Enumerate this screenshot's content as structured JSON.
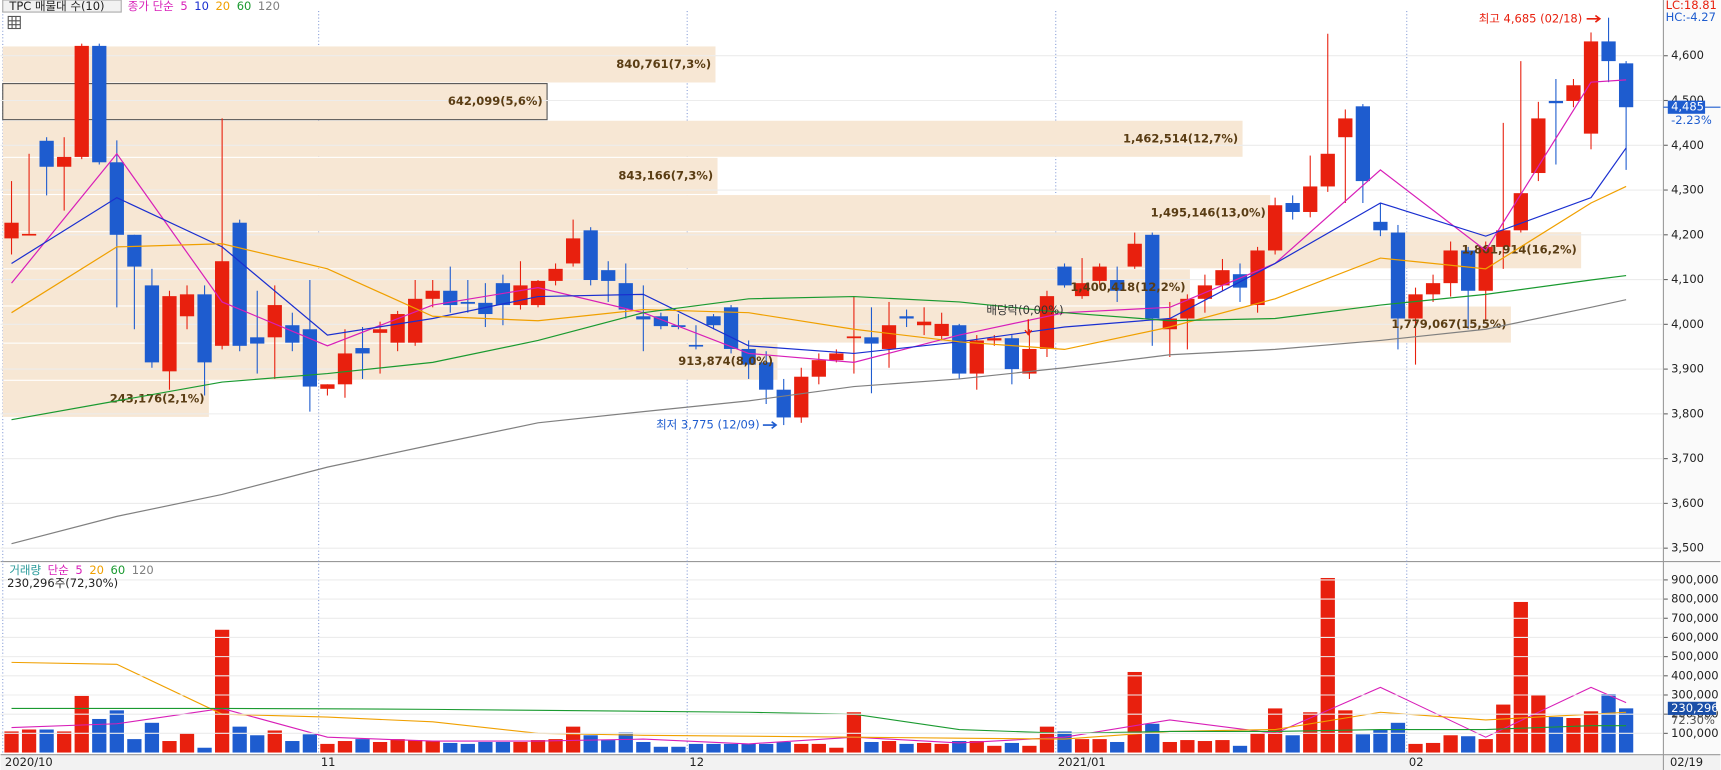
{
  "chart_data": [
    {
      "type": "candlestick",
      "legend_title": "TPC 매물대 수(10)",
      "legend_prefix": {
        "text": "종가 단순",
        "color": "#d81fb8"
      },
      "lc_label": "LC:18.81",
      "hc_label": "HC:-4.27",
      "up_color": "#e8200e",
      "down_color": "#1e5ccf",
      "open": [
        4192,
        4202,
        4410,
        4352,
        4374,
        4622,
        4362,
        4200,
        4087,
        3895,
        4018,
        4067,
        3952,
        4227,
        3971,
        3971,
        3998,
        3989,
        3856,
        3866,
        3947,
        3981,
        3959,
        3959,
        4057,
        4075,
        4050,
        4048,
        4092,
        4043,
        4043,
        4097,
        4136,
        4210,
        4121,
        4092,
        4018,
        4018,
        3998,
        3954,
        4018,
        4038,
        3945,
        3915,
        3854,
        3792,
        3883,
        3920,
        3969,
        3971,
        3945,
        4018,
        3998,
        3974,
        3998,
        3890,
        3964,
        3969,
        3890,
        3945,
        4129,
        4063,
        4097,
        4099,
        4129,
        4200,
        3989,
        4013,
        4057,
        4087,
        4112,
        4043,
        4165,
        4271,
        4251,
        4308,
        4418,
        4487,
        4229,
        4205,
        4013,
        4067,
        4092,
        4165,
        4075,
        4173,
        4210,
        4338,
        4499,
        4499,
        4426,
        4632,
        4583
      ],
      "high": [
        4320,
        4381,
        4418,
        4418,
        4627,
        4627,
        4411,
        4200,
        4124,
        4075,
        4087,
        4087,
        4460,
        4234,
        4075,
        4087,
        4026,
        4099,
        3866,
        3989,
        3994,
        4006,
        4030,
        4099,
        4099,
        4129,
        4099,
        4092,
        4111,
        4141,
        4099,
        4136,
        4234,
        4217,
        4141,
        4136,
        4087,
        4026,
        4023,
        3998,
        4023,
        4043,
        3964,
        3940,
        3878,
        3903,
        3935,
        3944,
        4062,
        4038,
        4050,
        4033,
        4038,
        4026,
        4001,
        3976,
        3976,
        3976,
        3989,
        4075,
        4136,
        4148,
        4136,
        4129,
        4205,
        4205,
        4050,
        4067,
        4111,
        4146,
        4136,
        4173,
        4283,
        4288,
        4377,
        4649,
        4480,
        4492,
        4271,
        4222,
        4082,
        4111,
        4185,
        4173,
        4185,
        4450,
        4588,
        4497,
        4548,
        4548,
        4652,
        4685,
        4588
      ],
      "low": [
        4156,
        4202,
        4288,
        4254,
        4369,
        4357,
        4038,
        3989,
        3903,
        3854,
        3989,
        3841,
        3944,
        3940,
        3890,
        3878,
        3940,
        3805,
        3841,
        3836,
        3878,
        3890,
        3940,
        3952,
        4038,
        4026,
        4026,
        3994,
        3998,
        4033,
        4038,
        4087,
        4129,
        4087,
        4050,
        4013,
        3940,
        3989,
        3989,
        3944,
        3989,
        3935,
        3878,
        3822,
        3775,
        3780,
        3866,
        3915,
        3890,
        3846,
        3903,
        3994,
        3976,
        3964,
        3878,
        3854,
        3952,
        3866,
        3878,
        3927,
        4082,
        4057,
        4087,
        4050,
        4124,
        3952,
        3927,
        3944,
        4026,
        4075,
        4050,
        4026,
        4156,
        4234,
        4239,
        4296,
        4271,
        4271,
        4197,
        3944,
        3910,
        4050,
        4062,
        3989,
        4008,
        4124,
        4205,
        4320,
        4357,
        4485,
        4391,
        4541,
        4345
      ],
      "close": [
        4227,
        4202,
        4352,
        4374,
        4622,
        4362,
        4200,
        4129,
        3915,
        4063,
        4067,
        3915,
        4141,
        3952,
        3957,
        4043,
        3959,
        3861,
        3866,
        3935,
        3935,
        3989,
        4023,
        4057,
        4075,
        4043,
        4046,
        4023,
        4043,
        4087,
        4097,
        4124,
        4192,
        4099,
        4097,
        4033,
        4011,
        3996,
        3994,
        3952,
        3998,
        3945,
        3910,
        3854,
        3792,
        3883,
        3920,
        3935,
        3973,
        3957,
        3998,
        4013,
        4006,
        4001,
        3890,
        3964,
        3969,
        3900,
        3945,
        4063,
        4087,
        4092,
        4129,
        4075,
        4180,
        4013,
        4013,
        4057,
        4087,
        4121,
        4082,
        4165,
        4266,
        4251,
        4308,
        4381,
        4460,
        4320,
        4210,
        4013,
        4067,
        4092,
        4165,
        4075,
        4173,
        4210,
        4293,
        4460,
        4494,
        4534,
        4632,
        4588,
        4485
      ],
      "ylim": [
        3470,
        4700
      ],
      "yticks": [
        {
          "value": 3500,
          "label": "3,500"
        },
        {
          "value": 3600,
          "label": "3,600"
        },
        {
          "value": 3700,
          "label": "3,700"
        },
        {
          "value": 3800,
          "label": "3,800"
        },
        {
          "value": 3900,
          "label": "3,900"
        },
        {
          "value": 4000,
          "label": "4,000"
        },
        {
          "value": 4100,
          "label": "4,100"
        },
        {
          "value": 4200,
          "label": "4,200"
        },
        {
          "value": 4300,
          "label": "4,300"
        },
        {
          "value": 4400,
          "label": "4,400"
        },
        {
          "value": 4500,
          "label": "4,500"
        },
        {
          "value": 4600,
          "label": "4,600"
        }
      ],
      "grid": true,
      "ma": [
        {
          "name": "5",
          "color": "#d81fb8",
          "x": [
            0,
            6,
            12,
            18,
            24,
            30,
            36,
            42,
            48,
            54,
            60,
            66,
            72,
            78,
            84,
            90,
            92
          ],
          "values": [
            4092,
            4381,
            4050,
            3952,
            4043,
            4082,
            4026,
            3935,
            3915,
            3976,
            4026,
            4038,
            4136,
            4345,
            4165,
            4541,
            4546
          ]
        },
        {
          "name": "10",
          "color": "#1a2fd0",
          "x": [
            0,
            6,
            12,
            18,
            24,
            30,
            36,
            42,
            48,
            54,
            60,
            66,
            72,
            78,
            84,
            90,
            92
          ],
          "values": [
            4136,
            4283,
            4173,
            3976,
            4013,
            4062,
            4067,
            3952,
            3935,
            3961,
            3994,
            4013,
            4136,
            4271,
            4197,
            4283,
            4394
          ]
        },
        {
          "name": "20",
          "color": "#f0a000",
          "x": [
            0,
            6,
            12,
            18,
            24,
            30,
            36,
            42,
            48,
            54,
            60,
            66,
            72,
            78,
            84,
            90,
            92
          ],
          "values": [
            4026,
            4173,
            4180,
            4124,
            4018,
            4008,
            4033,
            4026,
            3989,
            3961,
            3944,
            3994,
            4057,
            4148,
            4124,
            4271,
            4308
          ]
        },
        {
          "name": "60",
          "color": "#1a9a30",
          "x": [
            0,
            6,
            12,
            18,
            24,
            30,
            36,
            42,
            48,
            54,
            60,
            66,
            72,
            78,
            84,
            90,
            92
          ],
          "values": [
            3787,
            3829,
            3871,
            3890,
            3915,
            3964,
            4026,
            4057,
            4062,
            4050,
            4026,
            4008,
            4013,
            4043,
            4067,
            4099,
            4109
          ]
        },
        {
          "name": "120",
          "color": "#808080",
          "x": [
            0,
            6,
            12,
            18,
            24,
            30,
            36,
            42,
            48,
            54,
            60,
            66,
            72,
            78,
            84,
            90,
            92
          ],
          "values": [
            3510,
            3571,
            3620,
            3681,
            3731,
            3780,
            3805,
            3829,
            3861,
            3878,
            3903,
            3932,
            3944,
            3964,
            3989,
            4038,
            4055
          ]
        }
      ],
      "profile": {
        "color": "#f7e7d4",
        "bins": [
          3792,
          3875,
          3958,
          4041,
          4124,
          4207,
          4290,
          4373,
          4456,
          4539,
          4622
        ],
        "values": [
          243176,
          913874,
          1779067,
          1400418,
          1861914,
          1495146,
          843166,
          1462514,
          642099,
          840761
        ],
        "value_labels": [
          "243,176(2,1%)",
          "913,874(8,0%)",
          "1,779,067(15,5%)",
          "1,400,418(12,2%)",
          "1,861,914(16,2%)",
          "1,495,146(13,0%)",
          "843,166(7,3%)",
          "1,462,514(12,7%)",
          "642,099(5,6%)",
          "840,761(7,3%)"
        ]
      },
      "high_annotation": "최고 4,685 (02/18)",
      "low_annotation": "최저 3,775 (12/09)",
      "event_annotation": "배당락(0,00%)",
      "current_price": {
        "value": 4485,
        "label": "4,485"
      },
      "current_change": "-2.23%"
    },
    {
      "type": "bar",
      "legend_prefix": [
        {
          "text": "거래량",
          "color": "#2a9a9a"
        },
        {
          "text": "단순",
          "color": "#d81fb8"
        }
      ],
      "legend_suffix": {
        "text": "120",
        "color": "#808080"
      },
      "info": "230,296주(72,30%)",
      "categories": [
        "2020/10",
        null,
        null,
        null,
        null,
        null,
        null,
        null,
        null,
        null,
        null,
        null,
        null,
        null,
        null,
        null,
        null,
        null,
        "11",
        null,
        null,
        null,
        null,
        null,
        null,
        null,
        null,
        null,
        null,
        null,
        null,
        null,
        null,
        null,
        null,
        null,
        null,
        null,
        null,
        "12",
        null,
        null,
        null,
        null,
        null,
        null,
        null,
        null,
        null,
        null,
        null,
        null,
        null,
        null,
        null,
        null,
        null,
        null,
        null,
        null,
        "2021/01",
        null,
        null,
        null,
        null,
        null,
        null,
        null,
        null,
        null,
        null,
        null,
        null,
        null,
        null,
        null,
        null,
        null,
        null,
        null,
        "02",
        null,
        null,
        null,
        null,
        null,
        null,
        null,
        null,
        null,
        null,
        null,
        null
      ],
      "x_end_label": "02/19",
      "values": [
        110000,
        120000,
        120000,
        110000,
        295000,
        175000,
        220000,
        70000,
        155000,
        60000,
        100000,
        25000,
        640000,
        135000,
        90000,
        115000,
        60000,
        95000,
        45000,
        60000,
        70000,
        55000,
        70000,
        65000,
        60000,
        50000,
        45000,
        55000,
        55000,
        55000,
        65000,
        70000,
        135000,
        90000,
        65000,
        105000,
        55000,
        30000,
        30000,
        45000,
        45000,
        45000,
        45000,
        45000,
        55000,
        45000,
        45000,
        25000,
        210000,
        55000,
        60000,
        45000,
        50000,
        45000,
        60000,
        60000,
        35000,
        50000,
        35000,
        135000,
        110000,
        70000,
        70000,
        55000,
        420000,
        150000,
        55000,
        65000,
        60000,
        65000,
        35000,
        100000,
        230000,
        90000,
        210000,
        910000,
        220000,
        95000,
        120000,
        155000,
        45000,
        50000,
        90000,
        85000,
        70000,
        250000,
        785000,
        300000,
        185000,
        180000,
        215000,
        305000,
        230296
      ],
      "ylim": [
        -11000,
        984000
      ],
      "yticks": [
        {
          "value": 100000,
          "label": "100,000"
        },
        {
          "value": 200000,
          "label": "200,000"
        },
        {
          "value": 300000,
          "label": "300,000"
        },
        {
          "value": 400000,
          "label": "400,000"
        },
        {
          "value": 500000,
          "label": "500,000"
        },
        {
          "value": 600000,
          "label": "600,000"
        },
        {
          "value": 700000,
          "label": "700,000"
        },
        {
          "value": 800000,
          "label": "800,000"
        },
        {
          "value": 900000,
          "label": "900,000"
        }
      ],
      "grid": true,
      "series": [
        {
          "name": "5",
          "color": "#d81fb8",
          "x": [
            0,
            6,
            12,
            18,
            24,
            30,
            36,
            42,
            48,
            54,
            60,
            66,
            72,
            78,
            84,
            90,
            92
          ],
          "values": [
            130000,
            150000,
            230000,
            80000,
            60000,
            60000,
            70000,
            45000,
            80000,
            50000,
            80000,
            170000,
            100000,
            340000,
            80000,
            340000,
            260000
          ]
        },
        {
          "name": "20",
          "color": "#f0a000",
          "x": [
            0,
            6,
            12,
            18,
            24,
            30,
            36,
            42,
            48,
            54,
            60,
            66,
            72,
            78,
            84,
            90,
            92
          ],
          "values": [
            470000,
            460000,
            200000,
            185000,
            160000,
            100000,
            90000,
            85000,
            80000,
            75000,
            70000,
            110000,
            120000,
            210000,
            170000,
            200000,
            210000
          ]
        },
        {
          "name": "60",
          "color": "#1a9a30",
          "x": [
            0,
            6,
            12,
            18,
            24,
            30,
            36,
            42,
            48,
            54,
            60,
            66,
            72,
            78,
            84,
            90,
            92
          ],
          "values": [
            230000,
            230000,
            230000,
            228000,
            225000,
            220000,
            215000,
            210000,
            200000,
            120000,
            100000,
            110000,
            110000,
            120000,
            120000,
            140000,
            140000
          ]
        }
      ],
      "current_volume": {
        "value": 230296,
        "label": "230,296"
      },
      "current_ratio": "72.30%"
    }
  ]
}
